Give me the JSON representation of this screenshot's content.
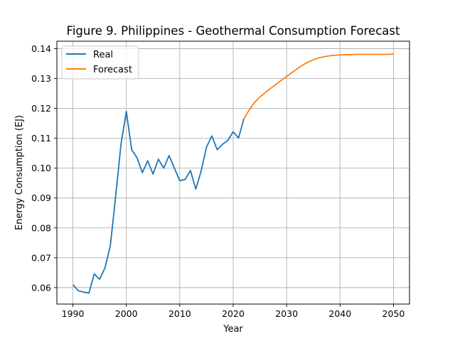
{
  "chart_data": {
    "type": "line",
    "title": "Figure 9. Philippines - Geothermal Consumption Forecast",
    "xlabel": "Year",
    "ylabel": "Energy Consumption (EJ)",
    "xlim": [
      1987,
      2053
    ],
    "ylim": [
      0.0545,
      0.1425
    ],
    "xticks": [
      1990,
      2000,
      2010,
      2020,
      2030,
      2040,
      2050
    ],
    "yticks": [
      0.06,
      0.07,
      0.08,
      0.09,
      0.1,
      0.11,
      0.12,
      0.13,
      0.14
    ],
    "ytick_labels": [
      "0.06",
      "0.07",
      "0.08",
      "0.09",
      "0.10",
      "0.11",
      "0.12",
      "0.13",
      "0.14"
    ],
    "grid": true,
    "legend_position": "top-left",
    "series": [
      {
        "name": "Real",
        "color": "#1f77b4",
        "x": [
          1990,
          1991,
          1992,
          1993,
          1994,
          1995,
          1996,
          1997,
          1998,
          1999,
          2000,
          2001,
          2002,
          2003,
          2004,
          2005,
          2006,
          2007,
          2008,
          2009,
          2010,
          2011,
          2012,
          2013,
          2014,
          2015,
          2016,
          2017,
          2018,
          2019,
          2020,
          2021,
          2022
        ],
        "y": [
          0.061,
          0.059,
          0.0585,
          0.0582,
          0.0646,
          0.0628,
          0.0666,
          0.074,
          0.0905,
          0.108,
          0.119,
          0.1062,
          0.1035,
          0.0985,
          0.1025,
          0.098,
          0.103,
          0.1,
          0.1042,
          0.1,
          0.0958,
          0.0962,
          0.0992,
          0.093,
          0.099,
          0.107,
          0.1108,
          0.1062,
          0.108,
          0.1093,
          0.1122,
          0.1101,
          0.1165
        ]
      },
      {
        "name": "Forecast",
        "color": "#ff7f0e",
        "x": [
          2022,
          2023,
          2024,
          2025,
          2026,
          2027,
          2028,
          2029,
          2030,
          2031,
          2032,
          2033,
          2034,
          2035,
          2036,
          2037,
          2038,
          2039,
          2040,
          2041,
          2042,
          2043,
          2044,
          2045,
          2046,
          2047,
          2048,
          2049,
          2050
        ],
        "y": [
          0.1165,
          0.1195,
          0.122,
          0.1238,
          0.1253,
          0.1267,
          0.128,
          0.1294,
          0.1307,
          0.132,
          0.1333,
          0.1345,
          0.1355,
          0.1363,
          0.1369,
          0.1373,
          0.1376,
          0.1378,
          0.1379,
          0.138,
          0.138,
          0.1381,
          0.1381,
          0.1381,
          0.1381,
          0.1381,
          0.1381,
          0.1381,
          0.1382
        ]
      }
    ]
  }
}
